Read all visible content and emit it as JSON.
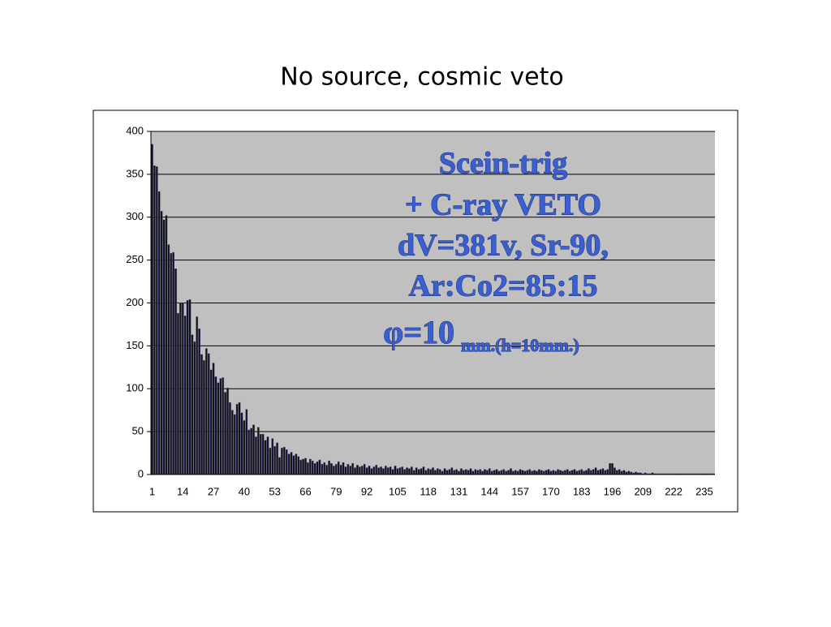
{
  "chart_data": {
    "type": "bar",
    "title": "No source, cosmic veto",
    "annotations": [
      "Scein-trig",
      "+ C-ray VETO",
      "dV=381v, Sr-90,",
      "Ar:Co2=85:15",
      "φ=10",
      "mm.(h=10mm.)"
    ],
    "categories": [
      "1",
      null,
      null,
      null,
      null,
      null,
      null,
      null,
      null,
      null,
      null,
      null,
      null,
      "14",
      null,
      null,
      null,
      null,
      null,
      null,
      null,
      null,
      null,
      null,
      null,
      null,
      "27",
      null,
      null,
      null,
      null,
      null,
      null,
      null,
      null,
      null,
      null,
      null,
      null,
      "40",
      null,
      null,
      null,
      null,
      null,
      null,
      null,
      null,
      null,
      null,
      null,
      null,
      "53",
      null,
      null,
      null,
      null,
      null,
      null,
      null,
      null,
      null,
      null,
      null,
      null,
      "66",
      null,
      null,
      null,
      null,
      null,
      null,
      null,
      null,
      null,
      null,
      null,
      null,
      "79",
      null,
      null,
      null,
      null,
      null,
      null,
      null,
      null,
      null,
      null,
      null,
      null,
      "92",
      null,
      null,
      null,
      null,
      null,
      null,
      null,
      null,
      null,
      null,
      null,
      null,
      "105",
      null,
      null,
      null,
      null,
      null,
      null,
      null,
      null,
      null,
      null,
      null,
      null,
      "118",
      null,
      null,
      null,
      null,
      null,
      null,
      null,
      null,
      null,
      null,
      null,
      null,
      "131",
      null,
      null,
      null,
      null,
      null,
      null,
      null,
      null,
      null,
      null,
      null,
      null,
      "144",
      null,
      null,
      null,
      null,
      null,
      null,
      null,
      null,
      null,
      null,
      null,
      null,
      "157",
      null,
      null,
      null,
      null,
      null,
      null,
      null,
      null,
      null,
      null,
      null,
      null,
      "170",
      null,
      null,
      null,
      null,
      null,
      null,
      null,
      null,
      null,
      null,
      null,
      null,
      "183",
      null,
      null,
      null,
      null,
      null,
      null,
      null,
      null,
      null,
      null,
      null,
      null,
      "196",
      null,
      null,
      null,
      null,
      null,
      null,
      null,
      null,
      null,
      null,
      null,
      null,
      "209",
      null,
      null,
      null,
      null,
      null,
      null,
      null,
      null,
      null,
      null,
      null,
      null,
      "222",
      null,
      null,
      null,
      null,
      null,
      null,
      null,
      null,
      null,
      null,
      null,
      null,
      "235",
      null,
      null,
      null,
      null
    ],
    "values": [
      385,
      360,
      359,
      330,
      307,
      297,
      302,
      268,
      258,
      259,
      240,
      188,
      200,
      200,
      185,
      203,
      204,
      163,
      155,
      184,
      170,
      140,
      133,
      147,
      141,
      122,
      130,
      114,
      107,
      112,
      113,
      96,
      101,
      84,
      75,
      70,
      82,
      84,
      72,
      63,
      76,
      52,
      54,
      58,
      44,
      55,
      47,
      47,
      40,
      44,
      31,
      42,
      33,
      37,
      20,
      31,
      32,
      29,
      24,
      26,
      22,
      24,
      21,
      17,
      18,
      19,
      14,
      18,
      16,
      13,
      15,
      17,
      12,
      14,
      11,
      16,
      13,
      10,
      12,
      15,
      11,
      14,
      9,
      12,
      10,
      13,
      8,
      11,
      9,
      10,
      12,
      8,
      10,
      7,
      9,
      11,
      8,
      9,
      7,
      10,
      8,
      9,
      6,
      10,
      7,
      8,
      9,
      6,
      8,
      7,
      9,
      5,
      8,
      6,
      7,
      9,
      5,
      7,
      6,
      8,
      5,
      7,
      6,
      4,
      7,
      5,
      6,
      8,
      5,
      6,
      4,
      7,
      5,
      6,
      5,
      7,
      4,
      6,
      5,
      6,
      4,
      6,
      5,
      7,
      4,
      5,
      6,
      4,
      5,
      6,
      4,
      5,
      7,
      4,
      5,
      4,
      6,
      5,
      4,
      5,
      6,
      4,
      5,
      4,
      6,
      5,
      4,
      5,
      6,
      4,
      5,
      4,
      6,
      5,
      4,
      5,
      6,
      4,
      5,
      6,
      4,
      5,
      6,
      4,
      5,
      7,
      5,
      6,
      8,
      5,
      6,
      7,
      5,
      6,
      13,
      13,
      8,
      5,
      6,
      4,
      5,
      3,
      4,
      3,
      2,
      3,
      2,
      2,
      1,
      2,
      1,
      1,
      2,
      1,
      1,
      1,
      1,
      1,
      1,
      1,
      1,
      1,
      1,
      1,
      1,
      1,
      1,
      1,
      1,
      1,
      1,
      1,
      1,
      1,
      1,
      1,
      1,
      1,
      1
    ],
    "color": "#111111",
    "ylim": [
      0,
      400
    ],
    "yticks": [
      0,
      50,
      100,
      150,
      200,
      250,
      300,
      350,
      400
    ],
    "grid": true
  }
}
